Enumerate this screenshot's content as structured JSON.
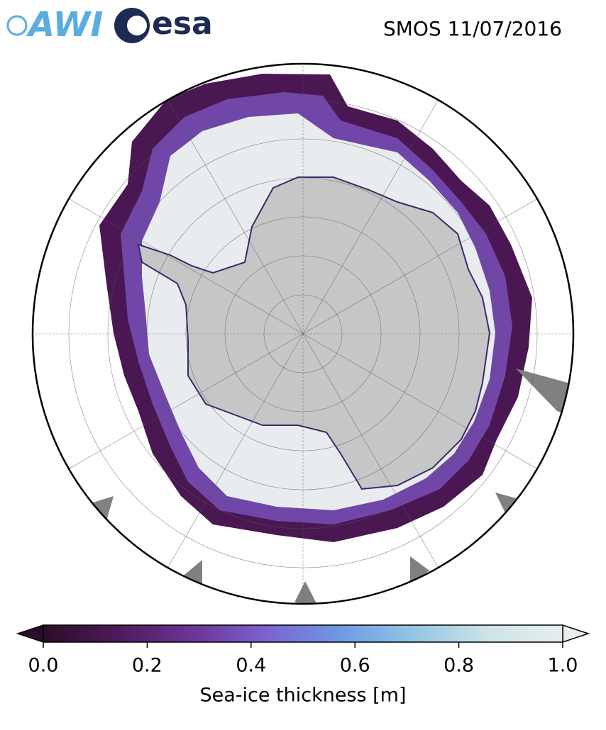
{
  "header": {
    "logos": [
      "AWI",
      "esa"
    ],
    "title": "SMOS 11/07/2016"
  },
  "colorbar": {
    "label": "Sea-ice thickness [m]",
    "lim": [
      0,
      1
    ],
    "ticks": [
      {
        "value": 0,
        "label": "0.0"
      },
      0.2,
      0.4,
      0.6,
      0.8,
      {
        "value": 1,
        "label": "1.0"
      }
    ],
    "colors": [
      "#2a0d26",
      "#4f1a5c",
      "#6a3596",
      "#7c62cf",
      "#6e9ae4",
      "#93c6e4",
      "#cfe3e6",
      "#e6eeee"
    ]
  }
}
